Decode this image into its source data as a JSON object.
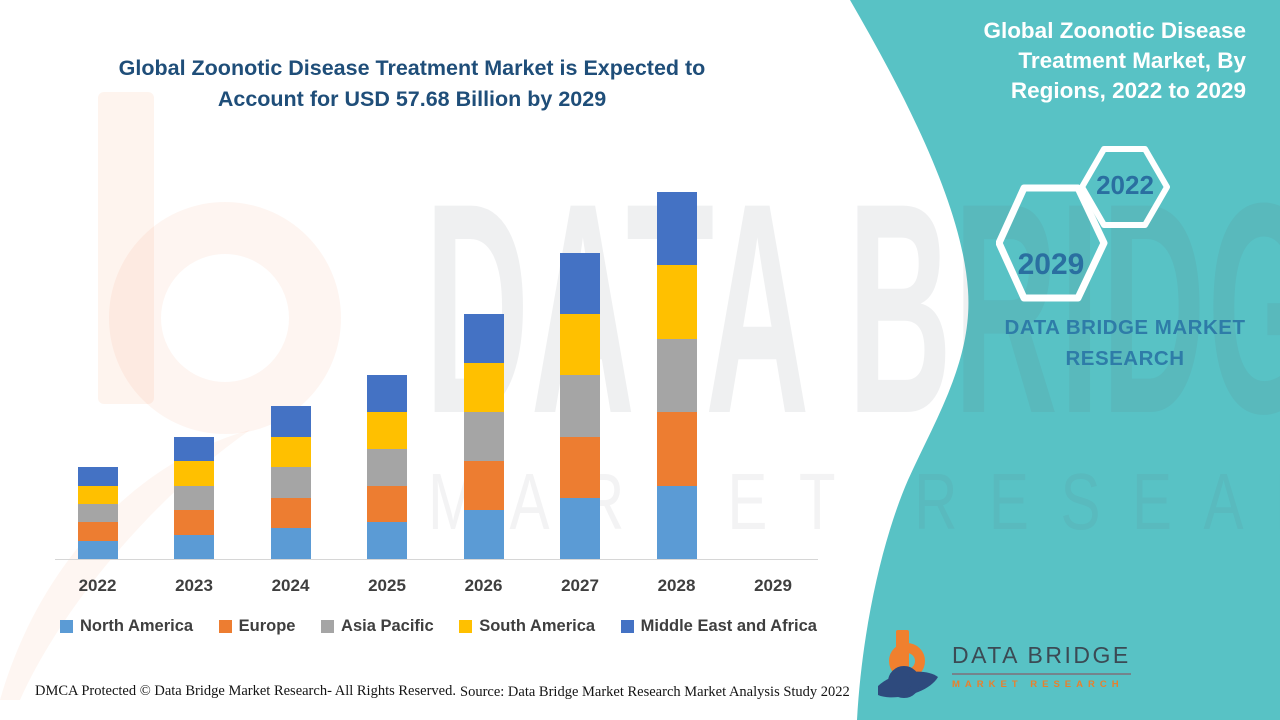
{
  "header": {
    "title_line1": "Global Zoonotic Disease Treatment Market is Expected to",
    "title_line2": "Account for USD 57.68 Billion by 2029",
    "title_color": "#1f4e79"
  },
  "chart_data": {
    "type": "bar",
    "stacked": true,
    "title": "Global Zoonotic Disease Treatment Market is Expected to Account for USD 57.68 Billion by 2029",
    "categories": [
      "2022",
      "2023",
      "2024",
      "2025",
      "2026",
      "2027",
      "2028",
      "2029"
    ],
    "series": [
      {
        "name": "North America",
        "color": "#5B9BD5",
        "values": [
          0.6,
          0.8,
          1.0,
          1.2,
          1.6,
          2.0,
          2.4,
          0
        ]
      },
      {
        "name": "Europe",
        "color": "#ED7D31",
        "values": [
          0.6,
          0.8,
          1.0,
          1.2,
          1.6,
          2.0,
          2.4,
          0
        ]
      },
      {
        "name": "Asia Pacific",
        "color": "#A5A5A5",
        "values": [
          0.6,
          0.8,
          1.0,
          1.2,
          1.6,
          2.0,
          2.4,
          0
        ]
      },
      {
        "name": "South America",
        "color": "#FFC000",
        "values": [
          0.6,
          0.8,
          1.0,
          1.2,
          1.6,
          2.0,
          2.4,
          0
        ]
      },
      {
        "name": "Middle East and Africa",
        "color": "#4472C4",
        "values": [
          0.6,
          0.8,
          1.0,
          1.2,
          1.6,
          2.0,
          2.4,
          0
        ]
      }
    ],
    "xlabel": "",
    "ylabel": "",
    "value_units": "relative units (no y-axis shown; bar totals approx 3,4,5,6,8,10,12 with each region about 20% of its year's total; 2029 has no bar drawn)",
    "grid": false,
    "legend_position": "bottom"
  },
  "panel": {
    "background": "#58c2c5",
    "title": "Global Zoonotic Disease Treatment Market, By Regions, 2022 to 2029",
    "hexagon_back_label": "2022",
    "hexagon_front_label": "2029",
    "brand_text": "DATA BRIDGE MARKET RESEARCH"
  },
  "logo": {
    "name": "DATA BRIDGE",
    "subtitle": "MARKET RESEARCH"
  },
  "watermark": {
    "line1": "DATA BRIDGE",
    "line2": "MARKET RESEARCH"
  },
  "footer": {
    "left": "DMCA Protected © Data Bridge Market Research- All Rights Reserved.",
    "right": "Source: Data Bridge Market Research Market Analysis Study 2022"
  }
}
